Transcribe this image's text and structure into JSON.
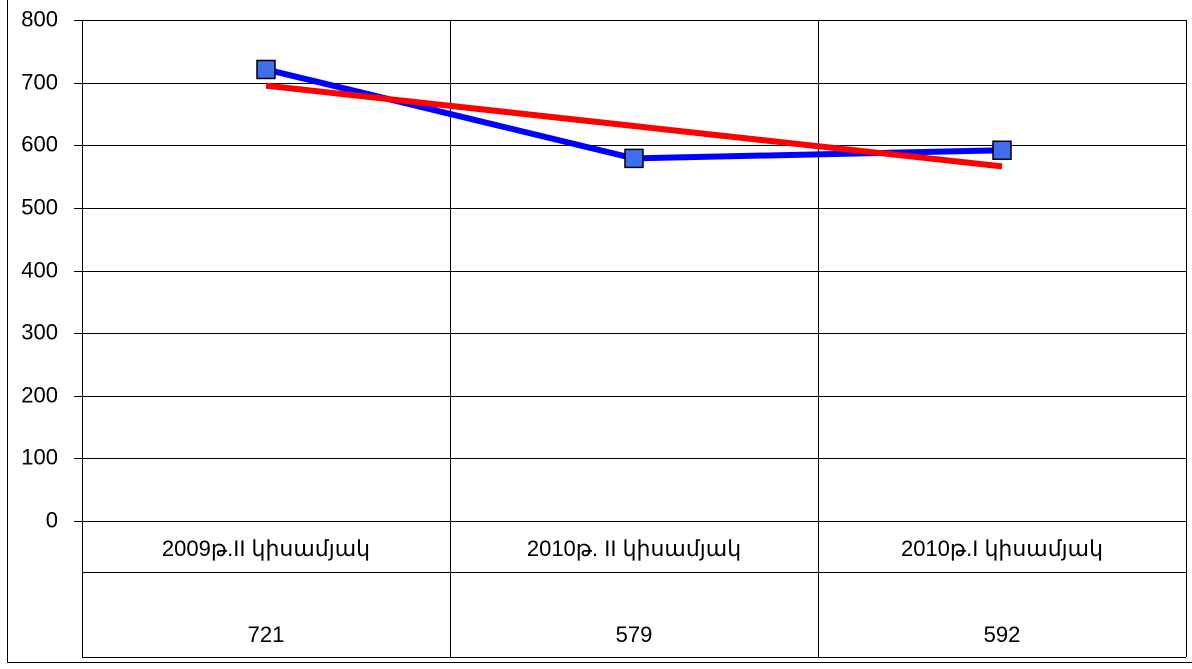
{
  "chart_data": {
    "type": "line",
    "categories": [
      "2009թ.II կիսամյակ",
      "2010թ. II կիսամյակ",
      "2010թ.I կիսամյակ"
    ],
    "series": [
      {
        "color": "#0000ff",
        "marker_color": "#3f6df0",
        "values": [
          721,
          579,
          592
        ]
      },
      {
        "color": "#ff0000",
        "values": [
          695.2,
          630.7,
          566.2
        ]
      }
    ],
    "ylim": [
      0,
      800
    ],
    "yticks": [
      0,
      100,
      200,
      300,
      400,
      500,
      600,
      700,
      800
    ],
    "grid": true
  }
}
